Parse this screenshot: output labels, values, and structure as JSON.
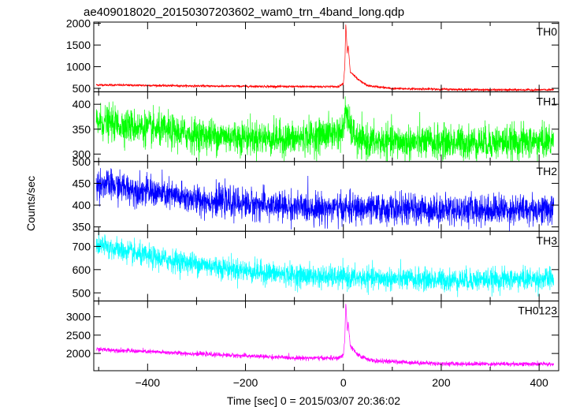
{
  "chart_data": {
    "type": "line",
    "title": "ae409018020_20150307203602_wam0_trn_4band_long.qdp",
    "xlabel": "Time [sec] 0 = 2015/03/07 20:36:02",
    "ylabel": "Counts/sec",
    "xlim": [
      -510,
      440
    ],
    "xticks": [
      -400,
      -200,
      0,
      200,
      400
    ],
    "xtick_labels": [
      "−400",
      "−200",
      "0",
      "200",
      "400"
    ],
    "panels": [
      {
        "name": "TH0",
        "color": "#ff0000",
        "ylim": [
          420,
          2030
        ],
        "yticks": [
          500,
          1000,
          1500,
          2000
        ],
        "ytick_labels": [
          "500",
          "1000",
          "1500",
          "2000"
        ],
        "anchor_points": [
          [
            -500,
            580
          ],
          [
            -300,
            555
          ],
          [
            -100,
            540
          ],
          [
            -10,
            540
          ],
          [
            0,
            620
          ],
          [
            3,
            1000
          ],
          [
            5,
            2010
          ],
          [
            8,
            1300
          ],
          [
            10,
            1490
          ],
          [
            14,
            880
          ],
          [
            20,
            820
          ],
          [
            30,
            700
          ],
          [
            50,
            560
          ],
          [
            100,
            495
          ],
          [
            300,
            465
          ],
          [
            430,
            465
          ]
        ],
        "noise_sd": 13
      },
      {
        "name": "TH1",
        "color": "#00ff00",
        "ylim": [
          285,
          425
        ],
        "yticks": [
          300,
          350,
          400
        ],
        "ytick_labels": [
          "300",
          "350",
          "400"
        ],
        "anchor_points": [
          [
            -500,
            365
          ],
          [
            -300,
            338
          ],
          [
            -100,
            330
          ],
          [
            0,
            345
          ],
          [
            5,
            395
          ],
          [
            12,
            355
          ],
          [
            30,
            325
          ],
          [
            200,
            323
          ],
          [
            430,
            325
          ]
        ],
        "noise_sd": 17
      },
      {
        "name": "TH2",
        "color": "#0000ff",
        "ylim": [
          340,
          500
        ],
        "yticks": [
          350,
          400,
          450,
          500
        ],
        "ytick_labels": [
          "350",
          "400",
          "450",
          "500"
        ],
        "anchor_points": [
          [
            -500,
            450
          ],
          [
            -300,
            412
          ],
          [
            -100,
            395
          ],
          [
            0,
            392
          ],
          [
            200,
            390
          ],
          [
            430,
            390
          ]
        ],
        "noise_sd": 17
      },
      {
        "name": "TH3",
        "color": "#00ffff",
        "ylim": [
          465,
          765
        ],
        "yticks": [
          500,
          600,
          700
        ],
        "ytick_labels": [
          "500",
          "600",
          "700"
        ],
        "anchor_points": [
          [
            -500,
            705
          ],
          [
            -400,
            655
          ],
          [
            -300,
            625
          ],
          [
            -200,
            595
          ],
          [
            -100,
            575
          ],
          [
            0,
            565
          ],
          [
            200,
            555
          ],
          [
            430,
            560
          ]
        ],
        "noise_sd": 24
      },
      {
        "name": "TH0123",
        "color": "#ff00ff",
        "ylim": [
          1530,
          3430
        ],
        "yticks": [
          2000,
          2500,
          3000
        ],
        "ytick_labels": [
          "2000",
          "2500",
          "3000"
        ],
        "anchor_points": [
          [
            -500,
            2110
          ],
          [
            -300,
            1990
          ],
          [
            -100,
            1880
          ],
          [
            -10,
            1870
          ],
          [
            0,
            1960
          ],
          [
            3,
            2400
          ],
          [
            5,
            3400
          ],
          [
            8,
            2600
          ],
          [
            10,
            2860
          ],
          [
            14,
            2200
          ],
          [
            30,
            1950
          ],
          [
            60,
            1800
          ],
          [
            200,
            1720
          ],
          [
            430,
            1710
          ]
        ],
        "noise_sd": 30
      }
    ]
  }
}
